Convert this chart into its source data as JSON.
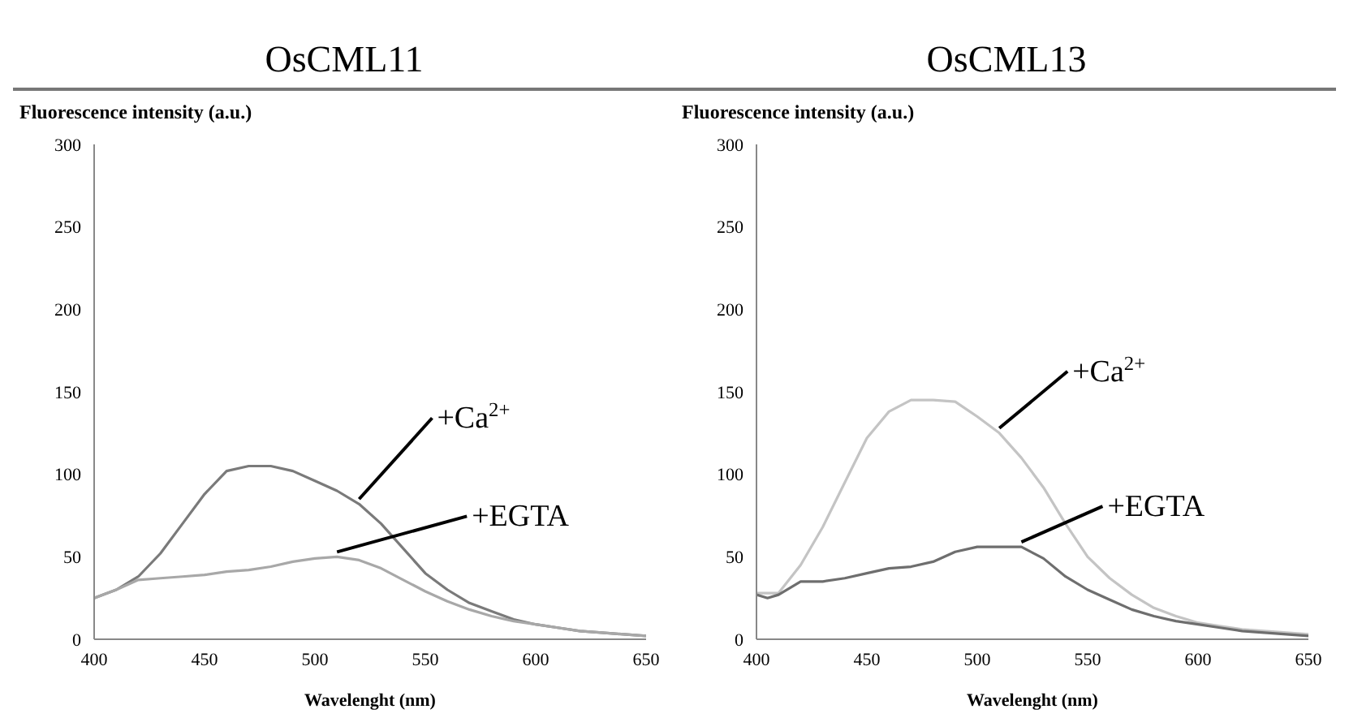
{
  "chart_data": [
    {
      "type": "line",
      "title": "OsCML11",
      "xlabel": "Wavelenght (nm)",
      "ylabel": "Fluorescence intensity (a.u.)",
      "x": [
        400,
        410,
        420,
        430,
        440,
        450,
        460,
        470,
        480,
        490,
        500,
        510,
        520,
        530,
        540,
        550,
        560,
        570,
        580,
        590,
        600,
        610,
        620,
        630,
        640,
        650
      ],
      "xlim": [
        400,
        650
      ],
      "xticks": [
        400,
        450,
        500,
        550,
        600,
        650
      ],
      "ylim": [
        0,
        300
      ],
      "yticks": [
        0,
        50,
        100,
        150,
        200,
        250,
        300
      ],
      "series": [
        {
          "name": "+Ca$^{2+}$",
          "color": "#7a7a7a",
          "values": [
            25,
            30,
            38,
            52,
            70,
            88,
            102,
            105,
            105,
            102,
            96,
            90,
            82,
            70,
            55,
            40,
            30,
            22,
            17,
            12,
            9,
            7,
            5,
            4,
            3,
            2
          ]
        },
        {
          "name": "+EGTA",
          "color": "#a8a8a8",
          "values": [
            25,
            30,
            36,
            37,
            38,
            39,
            41,
            42,
            44,
            47,
            49,
            50,
            48,
            43,
            36,
            29,
            23,
            18,
            14,
            11,
            9,
            7,
            5,
            4,
            3,
            2
          ]
        }
      ]
    },
    {
      "type": "line",
      "title": "OsCML13",
      "xlabel": "Wavelenght (nm)",
      "ylabel": "Fluorescence intensity (a.u.)",
      "x": [
        400,
        405,
        410,
        420,
        430,
        440,
        450,
        460,
        470,
        480,
        490,
        500,
        510,
        520,
        530,
        540,
        550,
        560,
        570,
        580,
        590,
        600,
        610,
        620,
        630,
        640,
        650
      ],
      "xlim": [
        400,
        650
      ],
      "xticks": [
        400,
        450,
        500,
        550,
        600,
        650
      ],
      "ylim": [
        0,
        300
      ],
      "yticks": [
        0,
        50,
        100,
        150,
        200,
        250,
        300
      ],
      "series": [
        {
          "name": "+Ca$^{2+}$",
          "color": "#c4c4c4",
          "values": [
            28,
            28,
            28,
            45,
            68,
            95,
            122,
            138,
            145,
            145,
            144,
            135,
            125,
            110,
            92,
            70,
            50,
            37,
            27,
            19,
            14,
            10,
            8,
            6,
            5,
            4,
            3
          ]
        },
        {
          "name": "+EGTA",
          "color": "#6e6e6e",
          "values": [
            27,
            25,
            27,
            35,
            35,
            37,
            40,
            43,
            44,
            47,
            53,
            56,
            56,
            56,
            49,
            38,
            30,
            24,
            18,
            14,
            11,
            9,
            7,
            5,
            4,
            3,
            2
          ]
        }
      ]
    }
  ]
}
